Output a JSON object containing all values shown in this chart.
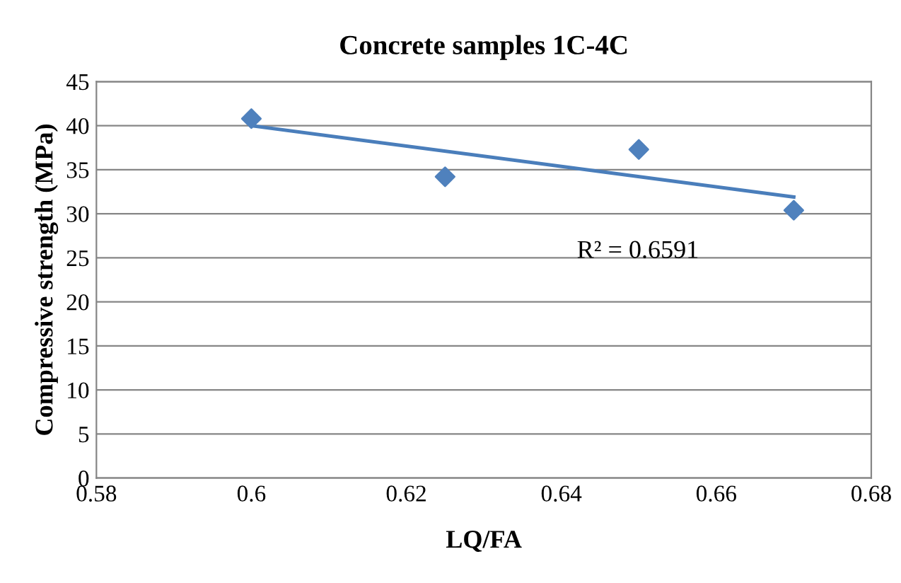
{
  "chart_data": {
    "type": "scatter",
    "title": "Concrete samples 1C-4C",
    "xlabel": "LQ/FA",
    "ylabel": "Compressive strength (MPa)",
    "x": [
      0.6,
      0.625,
      0.65,
      0.67
    ],
    "series": [
      {
        "color": "#4f81bd",
        "values": [
          40.8,
          34.2,
          37.3,
          30.4
        ],
        "marker": "diamond"
      },
      {
        "type": "line",
        "color": "#4a7ebb",
        "x": [
          0.6,
          0.67
        ],
        "values": [
          40.0,
          31.9
        ],
        "marker": "none"
      }
    ],
    "annotations": [
      "R² = 0.6591"
    ],
    "xlim": [
      0.58,
      0.68
    ],
    "xticks": [
      0.58,
      0.6,
      0.62,
      0.64,
      0.66,
      0.68
    ],
    "ylim": [
      0,
      45
    ],
    "yticks": [
      0,
      5,
      10,
      15,
      20,
      25,
      30,
      35,
      40,
      45
    ],
    "grid": "y",
    "legend": false
  }
}
